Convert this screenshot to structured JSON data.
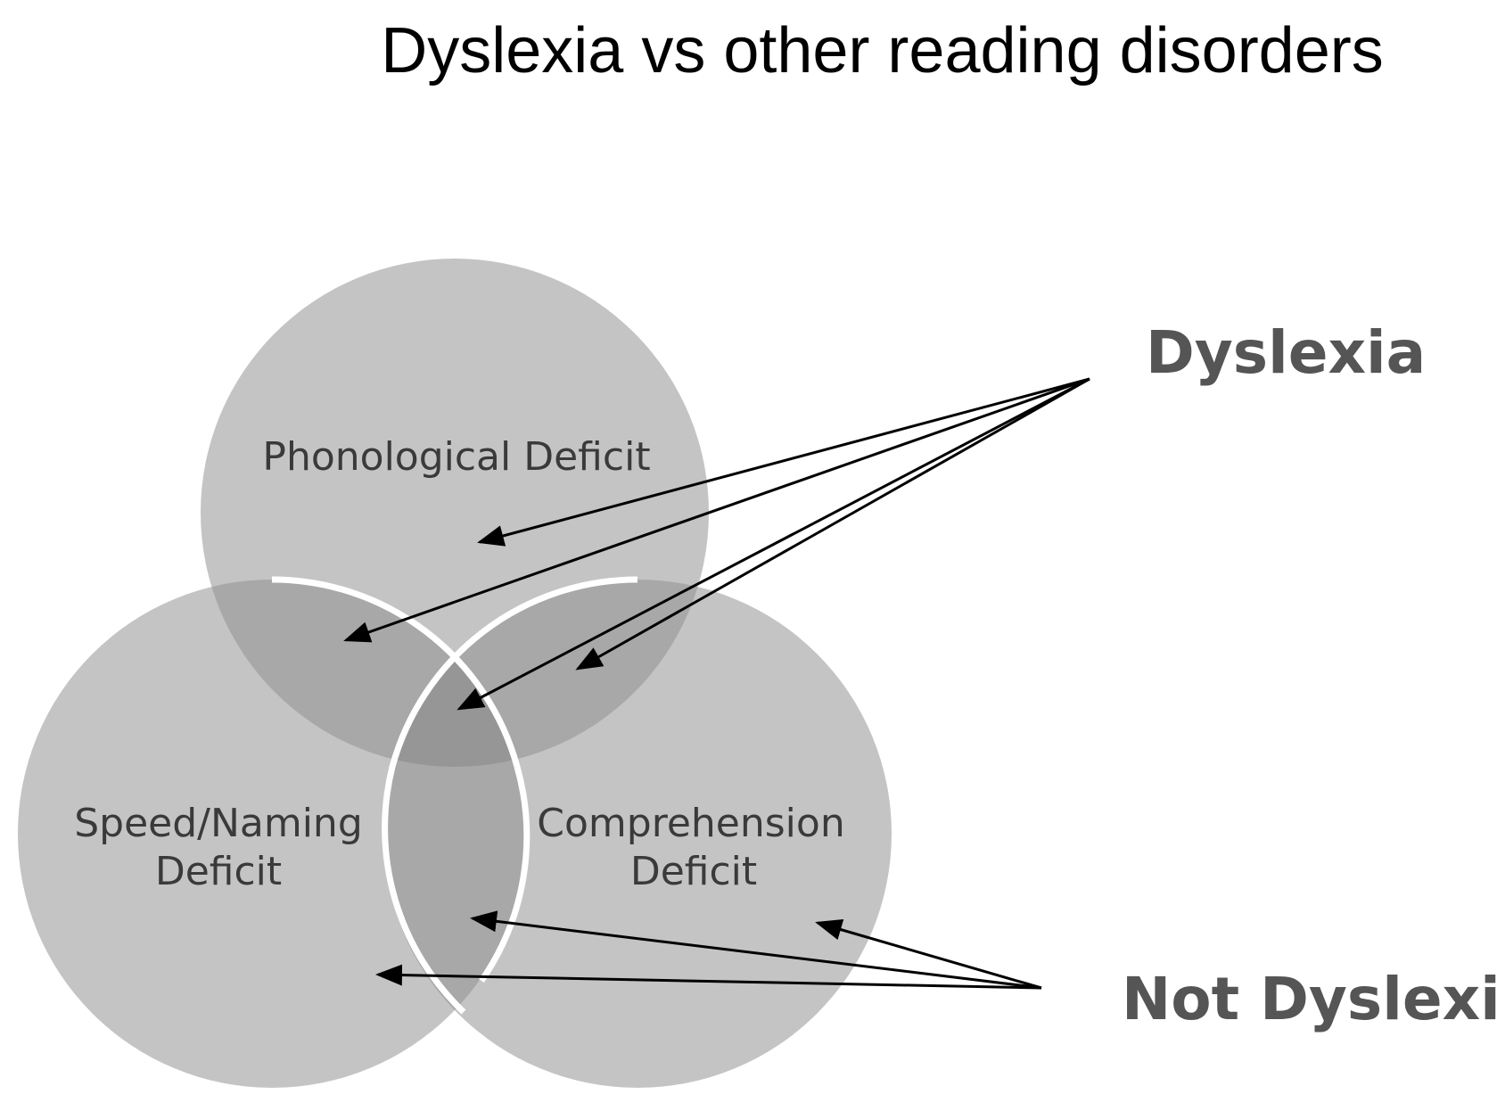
{
  "title": "Dyslexia vs other reading disorders",
  "circles": {
    "top": {
      "label": "Phonological Deficit"
    },
    "left": {
      "label_line1": "Speed/Naming",
      "label_line2": "Deficit"
    },
    "right": {
      "label_line1": "Comprehension",
      "label_line2": "Deficit"
    }
  },
  "callouts": {
    "dyslexia": "Dyslexia",
    "not_dyslexia": "Not Dyslexia"
  },
  "colors": {
    "circle_fill": "#c4c4c4",
    "pair_overlap": "#a8a8a8",
    "triple_overlap": "#969696",
    "outline": "#ffffff",
    "label_text": "#3a3a3a",
    "callout_text": "#555555",
    "arrow": "#000000"
  }
}
